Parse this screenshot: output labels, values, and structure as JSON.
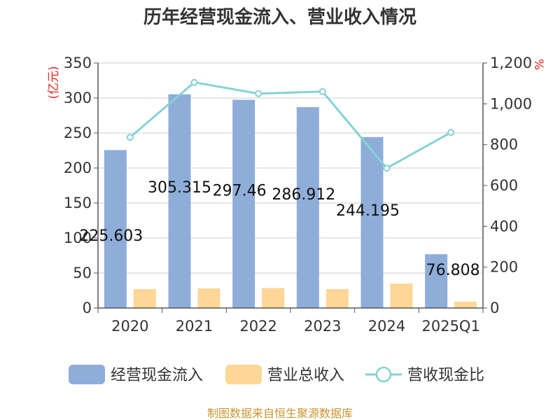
{
  "chart_data": {
    "type": "bar",
    "title": "历年经营现金流入、营业收入情况",
    "categories": [
      "2020",
      "2021",
      "2022",
      "2023",
      "2024",
      "2025Q1"
    ],
    "y_left": {
      "unit": "(亿元)",
      "lim": [
        0,
        350
      ],
      "ticks": [
        0,
        50,
        100,
        150,
        200,
        250,
        300,
        350
      ]
    },
    "y_right": {
      "unit": "%",
      "lim": [
        0,
        1200
      ],
      "ticks": [
        0,
        200,
        400,
        600,
        800,
        1000,
        1200
      ],
      "tick_labels": [
        "0",
        "200",
        "400",
        "600",
        "800",
        "1,000",
        "1,200"
      ]
    },
    "series": [
      {
        "name": "经营现金流入",
        "type": "bar",
        "axis": "left",
        "color": "#8eadd9",
        "values": [
          225.603,
          305.315,
          297.46,
          286.912,
          244.195,
          76.808
        ],
        "labels": [
          "225.603",
          "305.315",
          "297.46",
          "286.912",
          "244.195",
          "76.808"
        ]
      },
      {
        "name": "营业总收入",
        "type": "bar",
        "axis": "left",
        "color": "#fdd796",
        "values": [
          27,
          28,
          28.5,
          27,
          35,
          9
        ]
      },
      {
        "name": "营收现金比",
        "type": "line",
        "axis": "right",
        "color": "#86d2d4",
        "values": [
          836,
          1105,
          1050,
          1060,
          685,
          860
        ]
      }
    ],
    "grid": true,
    "legend_position": "bottom"
  },
  "source_text": "制图数据来自恒生聚源数据库"
}
